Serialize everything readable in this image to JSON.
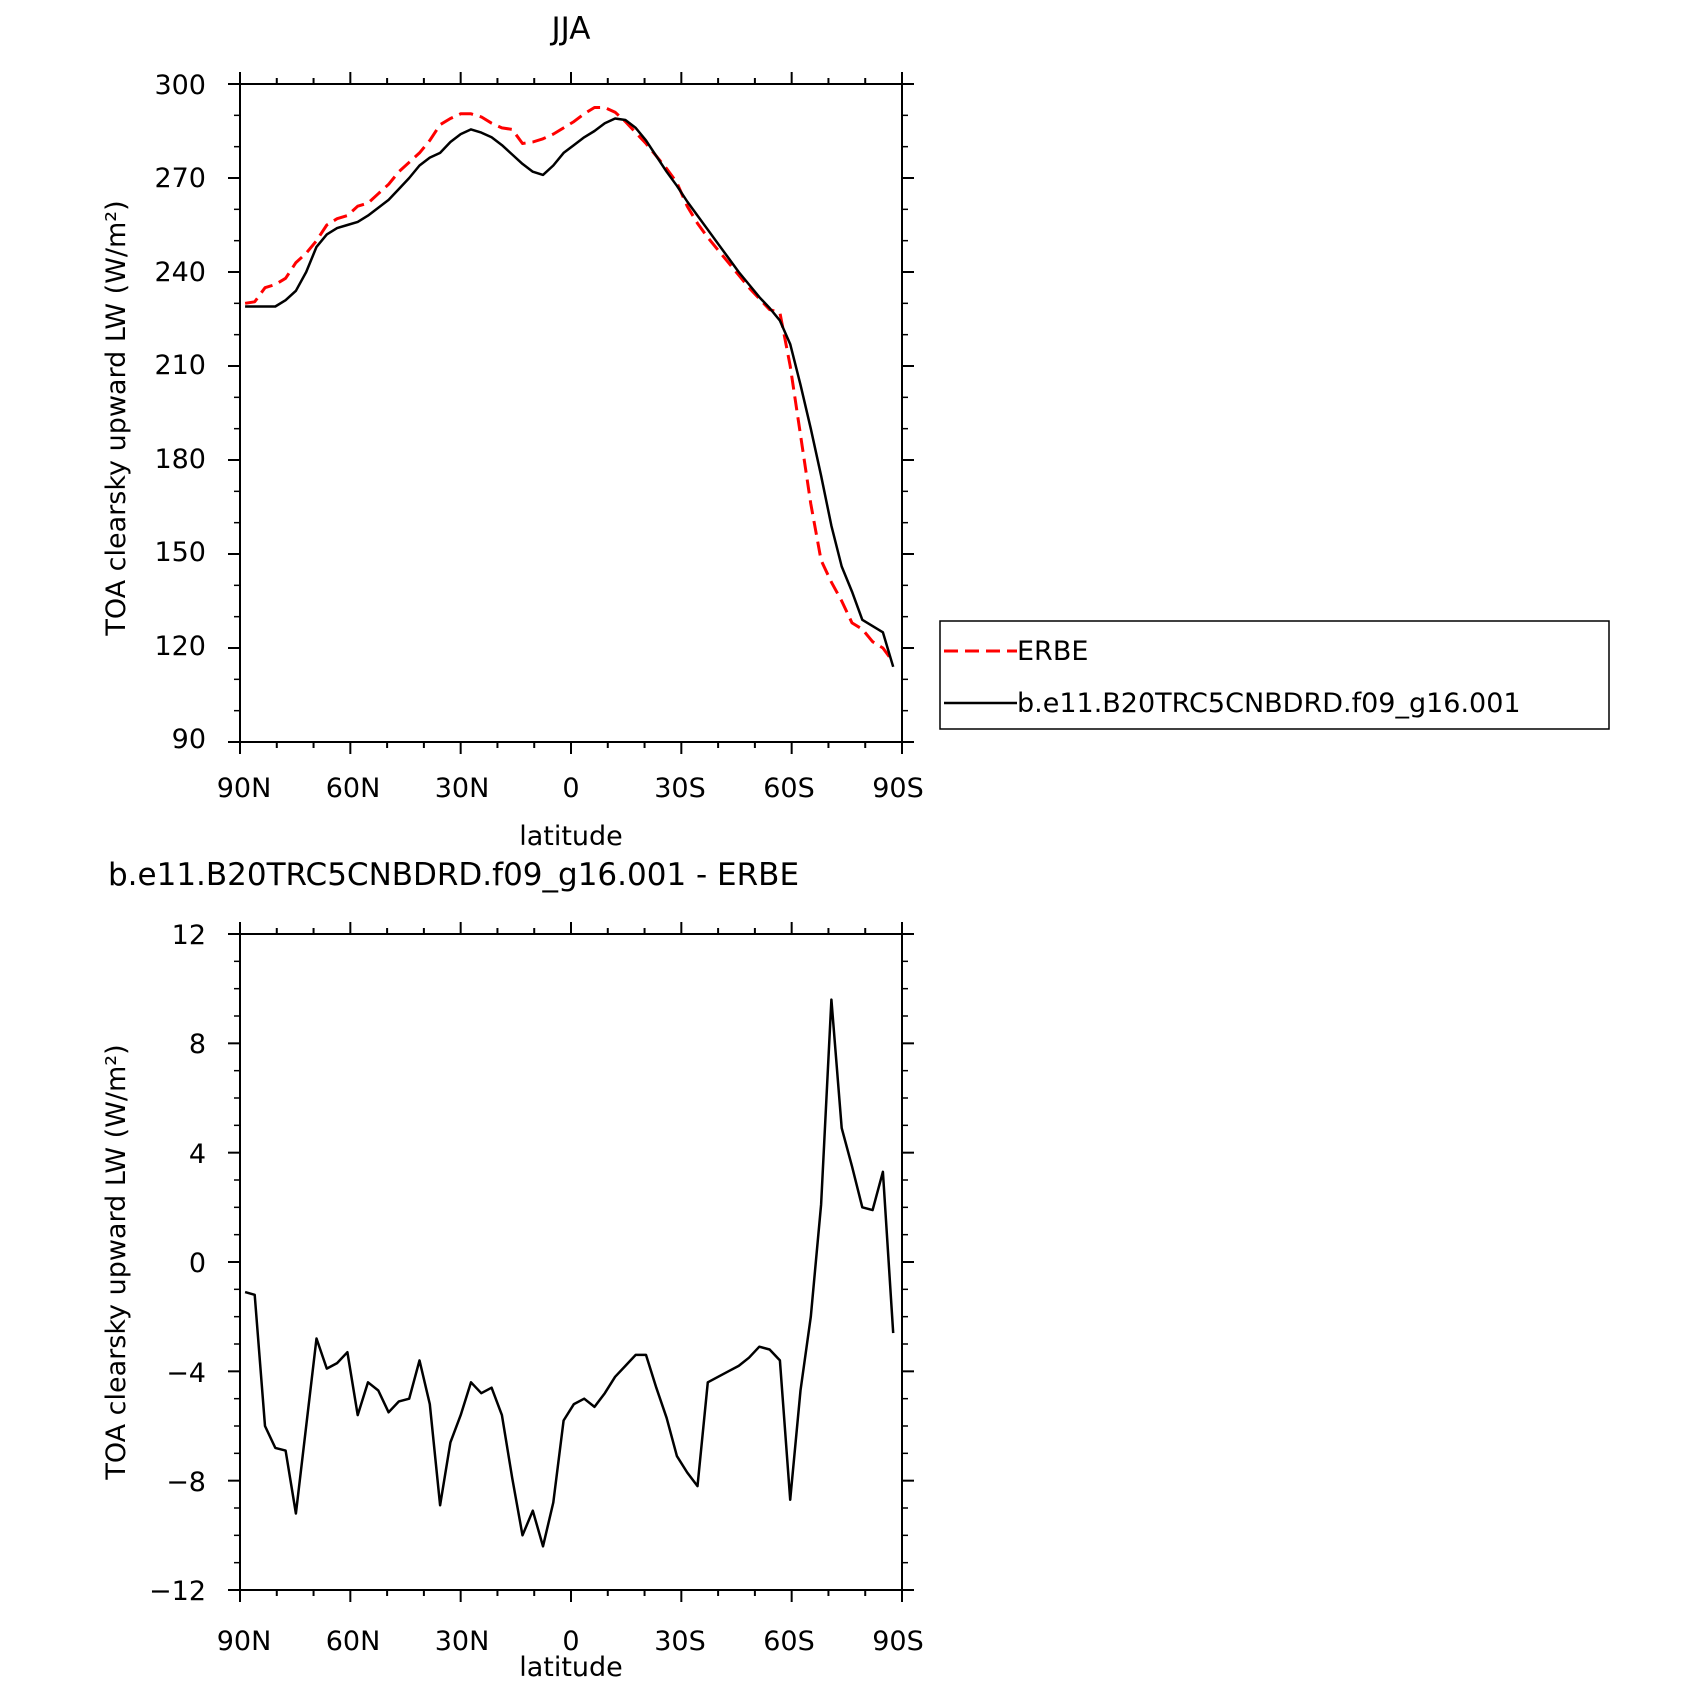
{
  "chart_data": [
    {
      "type": "line",
      "title": "JJA",
      "xlabel": "latitude",
      "ylabel": "TOA clearsky upward LW (W/m²)",
      "xlim": [
        90,
        -90
      ],
      "ylim": [
        90,
        300
      ],
      "xticks": [
        90,
        60,
        30,
        0,
        -30,
        -60,
        -90
      ],
      "xticklabels": [
        "90N",
        "60N",
        "30N",
        "0",
        "30S",
        "60S",
        "90S"
      ],
      "yticks": [
        90,
        120,
        150,
        180,
        210,
        240,
        270,
        300
      ],
      "yticklabels": [
        "90",
        "120",
        "150",
        "180",
        "210",
        "240",
        "270",
        "300"
      ],
      "grid": false,
      "legend": "right, outside plot",
      "series": [
        {
          "name": "ERBE",
          "color": "#ff0000",
          "style": "dashed",
          "x": [
            88.6,
            86.0,
            83.2,
            80.4,
            77.6,
            74.8,
            72.0,
            69.2,
            66.4,
            63.6,
            60.8,
            58.0,
            55.2,
            52.4,
            49.6,
            46.8,
            44.0,
            41.2,
            38.4,
            35.6,
            32.8,
            30.0,
            27.2,
            24.4,
            21.6,
            18.8,
            16.0,
            13.2,
            10.4,
            7.6,
            4.8,
            2.0,
            -0.8,
            -3.6,
            -6.4,
            -9.2,
            -12.0,
            -14.8,
            -17.6,
            -20.4,
            -23.2,
            -26.0,
            -28.8,
            -31.6,
            -34.4,
            -37.2,
            -40.0,
            -42.8,
            -45.6,
            -48.4,
            -51.2,
            -54.0,
            -56.8,
            -59.6,
            -62.4,
            -65.2,
            -68.0,
            -70.8,
            -73.6,
            -76.4,
            -79.2,
            -82.0,
            -84.8,
            -87.6
          ],
          "y": [
            230,
            230.5,
            235,
            236,
            238,
            243,
            246,
            250,
            255,
            257,
            258,
            261,
            262,
            265,
            268,
            272,
            275,
            278,
            282,
            287,
            289,
            290.5,
            290.5,
            289.5,
            287.5,
            286,
            285.5,
            281,
            281.5,
            282.5,
            284,
            286,
            288,
            290.5,
            292.5,
            292.5,
            291,
            288,
            284.5,
            281,
            277,
            273,
            268.5,
            261,
            255.5,
            251,
            247,
            243,
            239,
            235,
            231.5,
            228,
            227,
            210,
            188,
            166,
            148,
            141,
            135,
            128,
            126,
            122,
            120,
            115.5
          ]
        },
        {
          "name": "b.e11.B20TRC5CNBDRD.f09_g16.001",
          "color": "#000000",
          "style": "solid",
          "x": [
            88.6,
            86.0,
            83.2,
            80.4,
            77.6,
            74.8,
            72.0,
            69.2,
            66.4,
            63.6,
            60.8,
            58.0,
            55.2,
            52.4,
            49.6,
            46.8,
            44.0,
            41.2,
            38.4,
            35.6,
            32.8,
            30.0,
            27.2,
            24.4,
            21.6,
            18.8,
            16.0,
            13.2,
            10.4,
            7.6,
            4.8,
            2.0,
            -0.8,
            -3.6,
            -6.4,
            -9.2,
            -12.0,
            -14.8,
            -17.6,
            -20.4,
            -23.2,
            -26.0,
            -28.8,
            -31.6,
            -34.4,
            -37.2,
            -40.0,
            -42.8,
            -45.6,
            -48.4,
            -51.2,
            -54.0,
            -56.8,
            -59.6,
            -62.4,
            -65.2,
            -68.0,
            -70.8,
            -73.6,
            -76.4,
            -79.2,
            -82.0,
            -84.8,
            -87.6
          ],
          "y": [
            229,
            229,
            229,
            229,
            231,
            234,
            240,
            248,
            252,
            254,
            255,
            256,
            258,
            260.5,
            263,
            266.5,
            270,
            274,
            276.5,
            278,
            281.5,
            284,
            285.5,
            284.5,
            283,
            280.5,
            277.5,
            274.5,
            272,
            271,
            274,
            278,
            280.5,
            283,
            285,
            287.5,
            289,
            288.5,
            286,
            282,
            277,
            272,
            267.5,
            262.5,
            258,
            253.5,
            249,
            244.5,
            240,
            236,
            232,
            228.5,
            224.5,
            217,
            204,
            190,
            175,
            159,
            146,
            138,
            129,
            127,
            125,
            114
          ]
        }
      ]
    },
    {
      "type": "line",
      "title": "b.e11.B20TRC5CNBDRD.f09_g16.001 - ERBE",
      "xlabel": "latitude",
      "ylabel": "TOA clearsky upward LW (W/m²)",
      "xlim": [
        90,
        -90
      ],
      "ylim": [
        -12,
        12
      ],
      "xticks": [
        90,
        60,
        30,
        0,
        -30,
        -60,
        -90
      ],
      "xticklabels": [
        "90N",
        "60N",
        "30N",
        "0",
        "30S",
        "60S",
        "90S"
      ],
      "yticks": [
        -12,
        -8,
        -4,
        0,
        4,
        8,
        12
      ],
      "yticklabels": [
        "−12",
        "−8",
        "−4",
        "0",
        "4",
        "8",
        "12"
      ],
      "grid": false,
      "series": [
        {
          "color": "#000000",
          "style": "solid",
          "x": [
            88.6,
            86.0,
            83.2,
            80.4,
            77.6,
            74.8,
            72.0,
            69.2,
            66.4,
            63.6,
            60.8,
            58.0,
            55.2,
            52.4,
            49.6,
            46.8,
            44.0,
            41.2,
            38.4,
            35.6,
            32.8,
            30.0,
            27.2,
            24.4,
            21.6,
            18.8,
            16.0,
            13.2,
            10.4,
            7.6,
            4.8,
            2.0,
            -0.8,
            -3.6,
            -6.4,
            -9.2,
            -12.0,
            -14.8,
            -17.6,
            -20.4,
            -23.2,
            -26.0,
            -28.8,
            -31.6,
            -34.4,
            -37.2,
            -40.0,
            -42.8,
            -45.6,
            -48.4,
            -51.2,
            -54.0,
            -56.8,
            -59.6,
            -62.4,
            -65.2,
            -68.0,
            -70.8,
            -73.6,
            -76.4,
            -79.2,
            -82.0,
            -84.8,
            -87.6
          ],
          "y": [
            -1.1,
            -1.2,
            -6.0,
            -6.8,
            -6.9,
            -9.2,
            -6.0,
            -2.8,
            -3.9,
            -3.7,
            -3.3,
            -5.6,
            -4.4,
            -4.7,
            -5.5,
            -5.1,
            -5.0,
            -3.6,
            -5.2,
            -8.9,
            -6.6,
            -5.6,
            -4.4,
            -4.8,
            -4.6,
            -5.6,
            -7.9,
            -10.0,
            -9.1,
            -10.4,
            -8.8,
            -5.8,
            -5.2,
            -5.0,
            -5.3,
            -4.8,
            -4.2,
            -3.8,
            -3.4,
            -3.4,
            -4.6,
            -5.7,
            -7.1,
            -7.7,
            -8.2,
            -4.4,
            -4.2,
            -4.0,
            -3.8,
            -3.5,
            -3.1,
            -3.2,
            -3.6,
            -8.7,
            -4.7,
            -2.0,
            2.1,
            9.6,
            4.9,
            3.5,
            2.0,
            1.9,
            3.3,
            -2.6
          ]
        }
      ]
    }
  ]
}
